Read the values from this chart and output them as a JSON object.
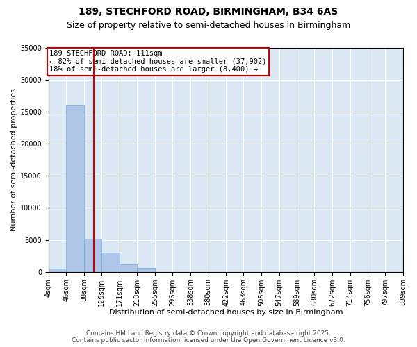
{
  "title1": "189, STECHFORD ROAD, BIRMINGHAM, B34 6AS",
  "title2": "Size of property relative to semi-detached houses in Birmingham",
  "xlabel": "Distribution of semi-detached houses by size in Birmingham",
  "ylabel": "Number of semi-detached properties",
  "bin_labels": [
    "4sqm",
    "46sqm",
    "88sqm",
    "129sqm",
    "171sqm",
    "213sqm",
    "255sqm",
    "296sqm",
    "338sqm",
    "380sqm",
    "422sqm",
    "463sqm",
    "505sqm",
    "547sqm",
    "589sqm",
    "630sqm",
    "672sqm",
    "714sqm",
    "756sqm",
    "797sqm",
    "839sqm"
  ],
  "bar_heights": [
    500,
    26000,
    5200,
    3000,
    1100,
    600,
    0,
    0,
    0,
    0,
    0,
    0,
    0,
    0,
    0,
    0,
    0,
    0,
    0,
    0
  ],
  "bin_edges": [
    4,
    46,
    88,
    129,
    171,
    213,
    255,
    296,
    338,
    380,
    422,
    463,
    505,
    547,
    589,
    630,
    672,
    714,
    756,
    797,
    839
  ],
  "bar_color": "#aec6e8",
  "bar_edgecolor": "#6baed6",
  "property_size": 111,
  "vline_color": "#cc0000",
  "annotation_text": "189 STECHFORD ROAD: 111sqm\n← 82% of semi-detached houses are smaller (37,902)\n18% of semi-detached houses are larger (8,400) →",
  "annotation_box_color": "#ffffff",
  "annotation_box_edgecolor": "#cc0000",
  "ylim": [
    0,
    35000
  ],
  "yticks": [
    0,
    5000,
    10000,
    15000,
    20000,
    25000,
    30000,
    35000
  ],
  "background_color": "#dce9f5",
  "footer_line1": "Contains HM Land Registry data © Crown copyright and database right 2025.",
  "footer_line2": "Contains public sector information licensed under the Open Government Licence v3.0.",
  "title1_fontsize": 10,
  "title2_fontsize": 9,
  "xlabel_fontsize": 8,
  "ylabel_fontsize": 8,
  "tick_fontsize": 7,
  "annotation_fontsize": 7.5,
  "footer_fontsize": 6.5
}
